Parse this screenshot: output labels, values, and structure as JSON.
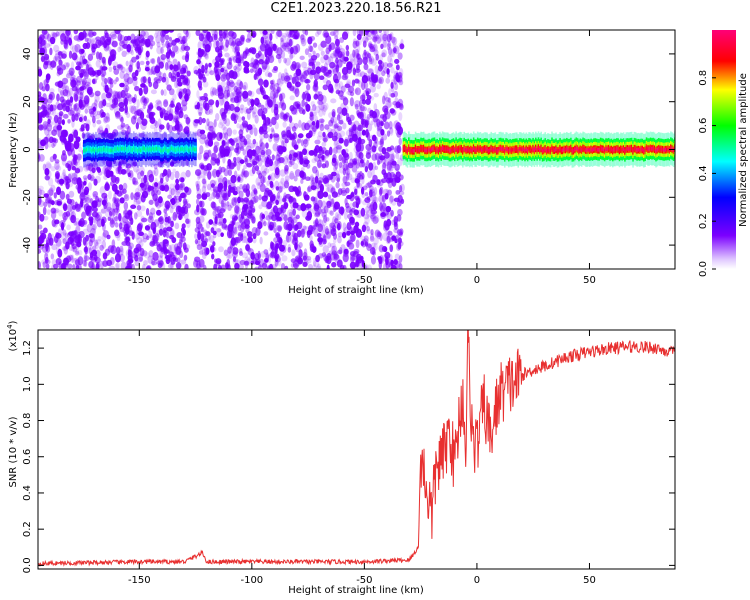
{
  "title": "C2E1.2023.220.18.56.R21",
  "chart_data": [
    {
      "type": "heatmap",
      "xlabel": "Height of straight line (km)",
      "ylabel": "Frequency (Hz)",
      "xlim": [
        -195,
        88
      ],
      "ylim": [
        -50,
        50
      ],
      "xticks": [
        -150,
        -100,
        -50,
        0,
        50
      ],
      "yticks": [
        -40,
        -20,
        0,
        20,
        40
      ],
      "grid": false,
      "colorbar": {
        "label": "Normalized spectral amplitude",
        "range": [
          0.0,
          1.0
        ],
        "ticks": [
          0.0,
          0.2,
          0.4,
          0.6,
          0.8
        ],
        "colormap": [
          "#ffffff",
          "#7b00ff",
          "#0000ff",
          "#00ffff",
          "#00ff00",
          "#ffff00",
          "#ff0000",
          "#ff0077"
        ]
      },
      "regions": [
        {
          "description": "broadband scattered noise",
          "x": [
            -195,
            -128
          ],
          "amplitude": [
            0.0,
            0.2
          ]
        },
        {
          "description": "broadband scattered noise",
          "x": [
            -125,
            -33
          ],
          "amplitude": [
            0.0,
            0.2
          ]
        },
        {
          "description": "narrow band near 0 Hz",
          "x": [
            -175,
            -125
          ],
          "frequency": 0,
          "amplitude": [
            0.2,
            0.5
          ]
        },
        {
          "description": "narrow band near 0 Hz",
          "x": [
            -33,
            88
          ],
          "frequency": 0,
          "amplitude": [
            0.4,
            1.0
          ]
        }
      ]
    },
    {
      "type": "line",
      "xlabel": "Height of straight line (km)",
      "ylabel": "SNR (10 * v/v)",
      "yscale_note": "(x10",
      "yscale_exp": "4",
      "xlim": [
        -195,
        88
      ],
      "ylim": [
        -0.02,
        1.3
      ],
      "xticks": [
        -150,
        -100,
        -50,
        0,
        50
      ],
      "yticks": [
        0.0,
        0.2,
        0.4,
        0.6,
        0.8,
        1.0,
        1.2
      ],
      "ytick_labels": [
        "0.0",
        "0.2",
        "0.4",
        "0.6",
        "0.8",
        "1.0",
        "1.2"
      ],
      "color": "#e83030",
      "series": [
        {
          "x": [
            -195,
            -150,
            -130,
            -125,
            -122,
            -120,
            -110,
            -80,
            -50,
            -30,
            -26,
            -25,
            -24,
            -22,
            -20,
            -18,
            -15,
            -12,
            -10,
            -8,
            -6,
            -5,
            -4,
            -2,
            0,
            3,
            6,
            10,
            15,
            20,
            25,
            30,
            40,
            50,
            60,
            70,
            80,
            85,
            88
          ],
          "y": [
            0.01,
            0.02,
            0.02,
            0.05,
            0.07,
            0.02,
            0.02,
            0.02,
            0.02,
            0.03,
            0.1,
            0.62,
            0.55,
            0.4,
            0.28,
            0.55,
            0.6,
            0.75,
            0.55,
            0.8,
            0.95,
            0.6,
            1.26,
            0.7,
            0.65,
            0.9,
            0.7,
            0.95,
            1.0,
            1.05,
            1.08,
            1.1,
            1.15,
            1.18,
            1.2,
            1.21,
            1.2,
            1.18,
            1.17
          ]
        }
      ]
    }
  ]
}
